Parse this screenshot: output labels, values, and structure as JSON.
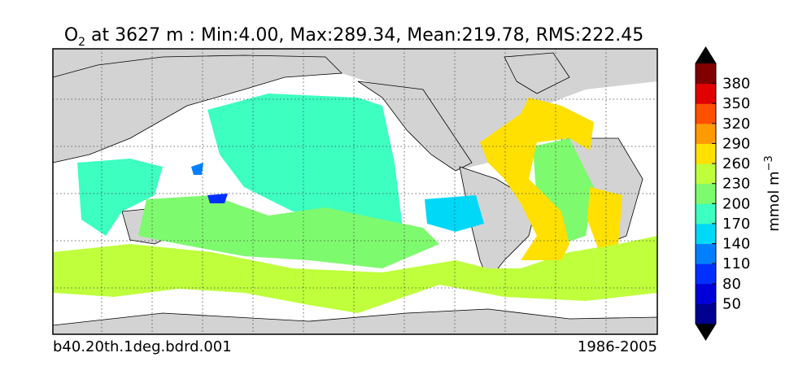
{
  "title": {
    "symbol": "O",
    "subscript": "2",
    "text": " at 3627 m : Min:4.00, Max:289.34, Mean:219.78, RMS:222.45"
  },
  "footer": {
    "left": "b40.20th.1deg.bdrd.001",
    "right": "1986-2005"
  },
  "colorbar": {
    "label": "mmol m",
    "label_superscript": "−3",
    "lim": [
      20,
      410
    ],
    "ticks": [
      50,
      80,
      110,
      140,
      170,
      200,
      230,
      260,
      290,
      320,
      350,
      380
    ],
    "colors": [
      "#000090",
      "#0000d8",
      "#0030ff",
      "#0080ff",
      "#00d8f8",
      "#3cffc0",
      "#7efa6e",
      "#bfff3c",
      "#ffe000",
      "#ff9a00",
      "#ff5000",
      "#e00000",
      "#800000"
    ],
    "under_color": "#000000",
    "over_color": "#000000"
  }
}
